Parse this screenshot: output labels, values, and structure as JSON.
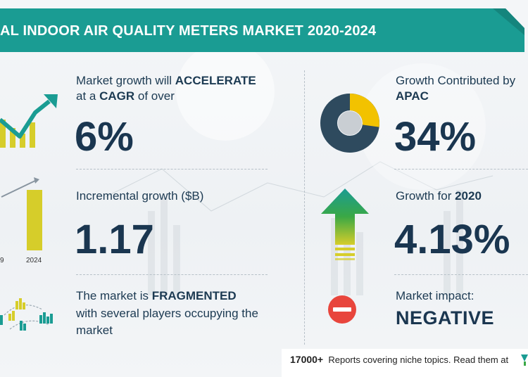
{
  "banner": {
    "title": "AL INDOOR AIR QUALITY METERS MARKET 2020-2024",
    "color": "#1a9c93"
  },
  "left": {
    "cagr_label_pre": "Market growth will",
    "cagr_label_bold": "ACCELERATE",
    "cagr_label2_pre": "at a",
    "cagr_label2_bold": "CAGR",
    "cagr_label2_post": "of over",
    "cagr_value": "6%",
    "incremental_label": "Incremental growth ($B)",
    "incremental_value": "1.17",
    "bar_tick_left": "9",
    "bar_tick_right": "2024",
    "fragmented_pre": "The market is",
    "fragmented_bold": "FRAGMENTED",
    "fragmented_line2": "with several players occupying the",
    "fragmented_line3": "market"
  },
  "right": {
    "apac_label": "Growth Contributed by",
    "apac_region": "APAC",
    "apac_value": "34%",
    "growth2020_label": "Growth for",
    "growth2020_year": "2020",
    "growth2020_value": "4.13%",
    "impact_label": "Market impact:",
    "impact_value": "NEGATIVE"
  },
  "footer": {
    "count": "17000+",
    "text": "Reports covering niche topics. Read them at"
  },
  "colors": {
    "navy": "#2e4a5e",
    "yellow": "#f2c200",
    "teal": "#1a9c93",
    "red": "#e8453c",
    "green": "#3aa845"
  },
  "icons": [
    "trend-arrow-icon",
    "bar-chart-icon",
    "players-icon",
    "donut-chart-icon",
    "up-arrow-icon",
    "minus-circle-icon"
  ]
}
